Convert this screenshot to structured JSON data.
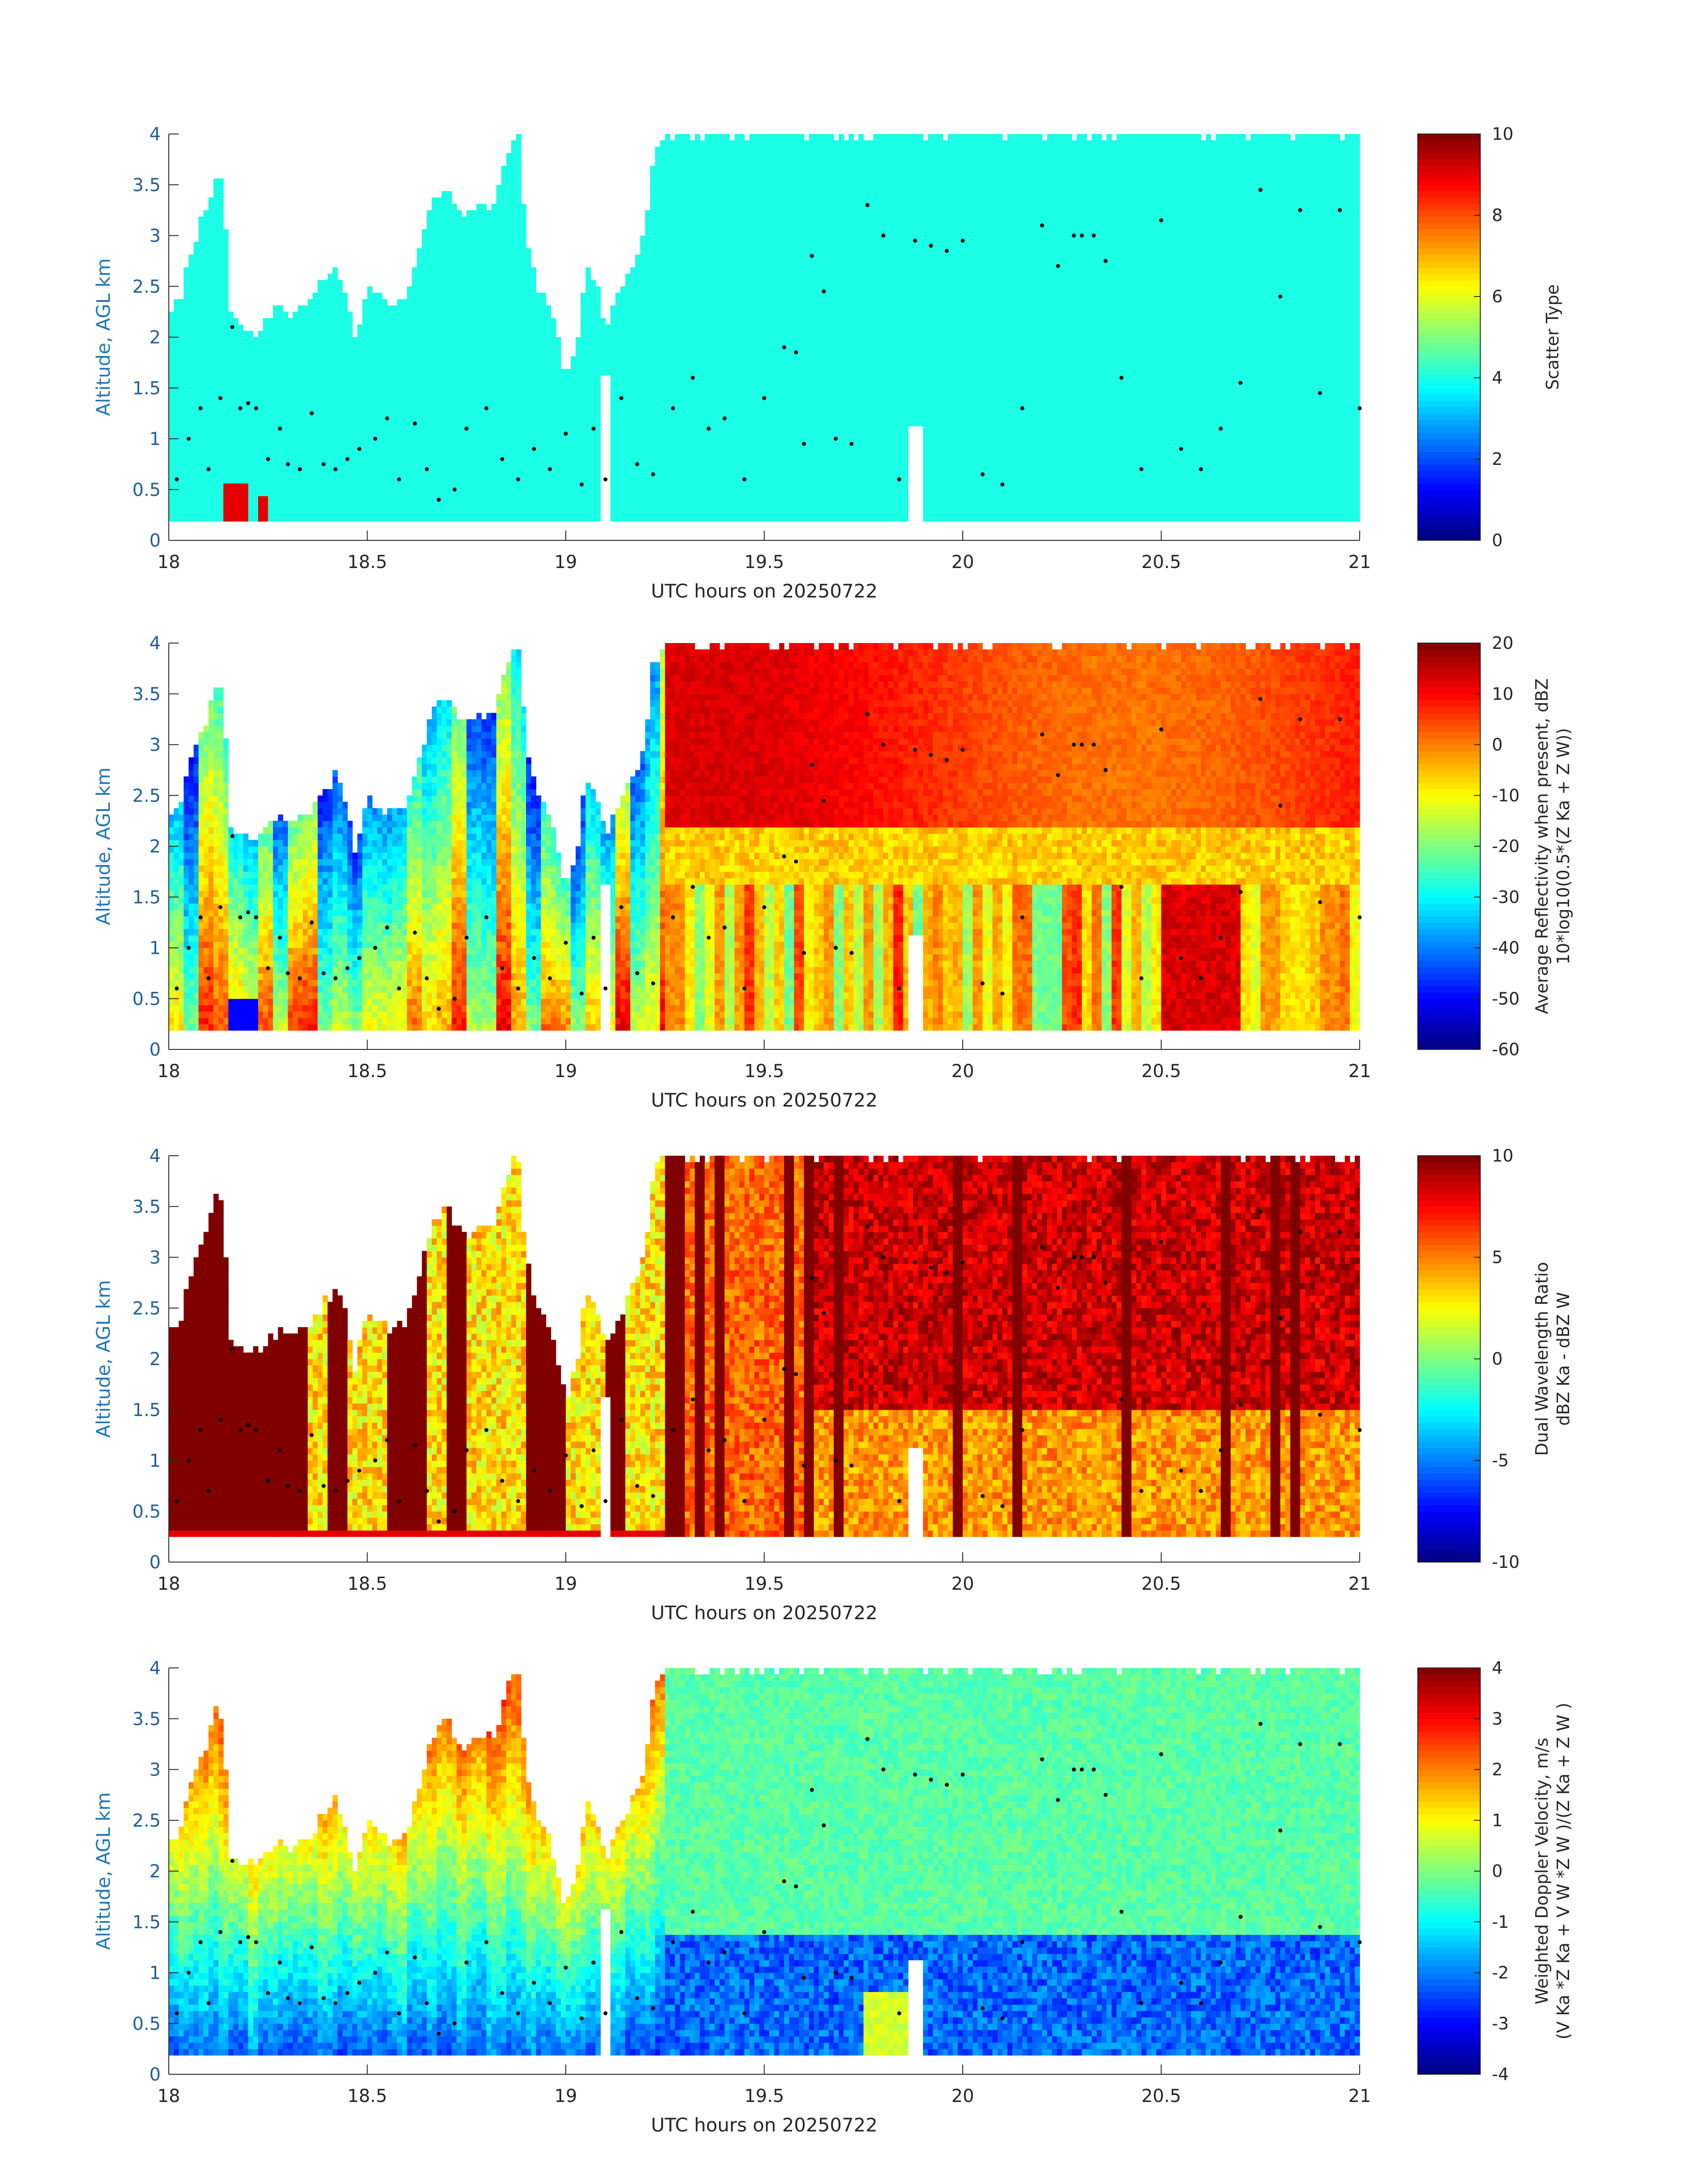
{
  "figure": {
    "panels": [
      {
        "ylabel": "Altitude, AGL km",
        "xlabel": "UTC hours on 20250722",
        "colorbar": {
          "line1": "Scatter Type",
          "line2": "",
          "ticks": [
            "0",
            "2",
            "4",
            "6",
            "8",
            "10"
          ],
          "range": [
            0,
            10
          ]
        }
      },
      {
        "ylabel": "Altitude, AGL km",
        "xlabel": "UTC hours on 20250722",
        "colorbar": {
          "line1": "Average Reflectivity when present, dBZ",
          "line2": "10*log10(0.5*(Z Ka + Z W))",
          "ticks": [
            "-60",
            "-50",
            "-40",
            "-30",
            "-20",
            "-10",
            "0",
            "10",
            "20"
          ],
          "range": [
            -60,
            20
          ]
        }
      },
      {
        "ylabel": "Altitude, AGL km",
        "xlabel": "UTC hours on 20250722",
        "colorbar": {
          "line1": "Dual Wavelength Ratio",
          "line2": "dBZ Ka - dBZ W",
          "ticks": [
            "-10",
            "-5",
            "0",
            "5",
            "10"
          ],
          "range": [
            -10,
            10
          ]
        }
      },
      {
        "ylabel": "Altitude, AGL km",
        "xlabel": "UTC hours on 20250722",
        "colorbar": {
          "line1": "Weighted Doppler Velocity, m/s",
          "line2": "(V Ka *Z Ka + V W *Z W )/(Z Ka + Z W )",
          "ticks": [
            "-4",
            "-3",
            "-2",
            "-1",
            "0",
            "1",
            "2",
            "3",
            "4"
          ],
          "range": [
            -4,
            4
          ]
        }
      }
    ]
  },
  "chart_data": [
    {
      "type": "heatmap",
      "title": "",
      "xlabel": "UTC hours on 20250722",
      "ylabel": "Altitude, AGL km",
      "xlim": [
        18,
        21
      ],
      "ylim": [
        0,
        4
      ],
      "xticks": [
        "18",
        "18.5",
        "19",
        "19.5",
        "20",
        "20.5",
        "21"
      ],
      "yticks": [
        "0",
        "0.5",
        "1",
        "1.5",
        "2",
        "2.5",
        "3",
        "3.5",
        "4"
      ],
      "colorbar_label": "Scatter Type",
      "color_range": [
        0,
        10
      ],
      "colormap": "jet",
      "dominant_value": 4,
      "secondary_value": 9,
      "overlay": "black dots (cloud base estimates)"
    },
    {
      "type": "heatmap",
      "title": "",
      "xlabel": "UTC hours on 20250722",
      "ylabel": "Altitude, AGL km",
      "xlim": [
        18,
        21
      ],
      "ylim": [
        0,
        4
      ],
      "xticks": [
        "18",
        "18.5",
        "19",
        "19.5",
        "20",
        "20.5",
        "21"
      ],
      "yticks": [
        "0",
        "0.5",
        "1",
        "1.5",
        "2",
        "2.5",
        "3",
        "3.5",
        "4"
      ],
      "colorbar_label": "Average Reflectivity when present, dBZ 10*log10(0.5*(Z Ka + Z W))",
      "color_range": [
        -60,
        20
      ],
      "colormap": "jet",
      "overlay": "black dots (cloud base estimates)"
    },
    {
      "type": "heatmap",
      "title": "",
      "xlabel": "UTC hours on 20250722",
      "ylabel": "Altitude, AGL km",
      "xlim": [
        18,
        21
      ],
      "ylim": [
        0,
        4
      ],
      "xticks": [
        "18",
        "18.5",
        "19",
        "19.5",
        "20",
        "20.5",
        "21"
      ],
      "yticks": [
        "0",
        "0.5",
        "1",
        "1.5",
        "2",
        "2.5",
        "3",
        "3.5",
        "4"
      ],
      "colorbar_label": "Dual Wavelength Ratio dBZ Ka - dBZ W",
      "color_range": [
        -10,
        10
      ],
      "colormap": "jet",
      "overlay": "black dots (cloud base estimates)"
    },
    {
      "type": "heatmap",
      "title": "",
      "xlabel": "UTC hours on 20250722",
      "ylabel": "Altitude, AGL km",
      "xlim": [
        18,
        21
      ],
      "ylim": [
        0,
        4
      ],
      "xticks": [
        "18",
        "18.5",
        "19",
        "19.5",
        "20",
        "20.5",
        "21"
      ],
      "yticks": [
        "0",
        "0.5",
        "1",
        "1.5",
        "2",
        "2.5",
        "3",
        "3.5",
        "4"
      ],
      "colorbar_label": "Weighted Doppler Velocity, m/s (V Ka *Z Ka + V W *Z W )/(Z Ka + Z W )",
      "color_range": [
        -4,
        4
      ],
      "colormap": "jet",
      "overlay": "black dots (cloud base estimates)"
    }
  ],
  "overlay_dots": {
    "x": [
      18.02,
      18.05,
      18.08,
      18.1,
      18.13,
      18.16,
      18.18,
      18.2,
      18.22,
      18.25,
      18.28,
      18.3,
      18.33,
      18.36,
      18.39,
      18.42,
      18.45,
      18.48,
      18.52,
      18.55,
      18.58,
      18.62,
      18.65,
      18.68,
      18.72,
      18.75,
      18.8,
      18.84,
      18.88,
      18.92,
      18.96,
      19.0,
      19.04,
      19.07,
      19.1,
      19.14,
      19.18,
      19.22,
      19.27,
      19.32,
      19.36,
      19.4,
      19.45,
      19.5,
      19.55,
      19.58,
      19.6,
      19.62,
      19.65,
      19.68,
      19.72,
      19.76,
      19.8,
      19.84,
      19.88,
      19.92,
      19.96,
      20.0,
      20.05,
      20.1,
      20.15,
      20.2,
      20.24,
      20.28,
      20.3,
      20.33,
      20.36,
      20.4,
      20.45,
      20.5,
      20.55,
      20.6,
      20.65,
      20.7,
      20.75,
      20.8,
      20.85,
      20.9,
      20.95,
      21.0
    ],
    "y": [
      0.6,
      1.0,
      1.3,
      0.7,
      1.4,
      2.1,
      1.3,
      1.35,
      1.3,
      0.8,
      1.1,
      0.75,
      0.7,
      1.25,
      0.75,
      0.7,
      0.8,
      0.9,
      1.0,
      1.2,
      0.6,
      1.15,
      0.7,
      0.4,
      0.5,
      1.1,
      1.3,
      0.8,
      0.6,
      0.9,
      0.7,
      1.05,
      0.55,
      1.1,
      0.6,
      1.4,
      0.75,
      0.65,
      1.3,
      1.6,
      1.1,
      1.2,
      0.6,
      1.4,
      1.9,
      1.85,
      0.95,
      2.8,
      2.45,
      1.0,
      0.95,
      3.3,
      3.0,
      0.6,
      2.95,
      2.9,
      2.85,
      2.95,
      0.65,
      0.55,
      1.3,
      3.1,
      2.7,
      3.0,
      3.0,
      3.0,
      2.75,
      1.6,
      0.7,
      3.15,
      0.9,
      0.7,
      1.1,
      1.55,
      3.45,
      2.4,
      3.25,
      1.45,
      3.25,
      1.3
    ]
  }
}
